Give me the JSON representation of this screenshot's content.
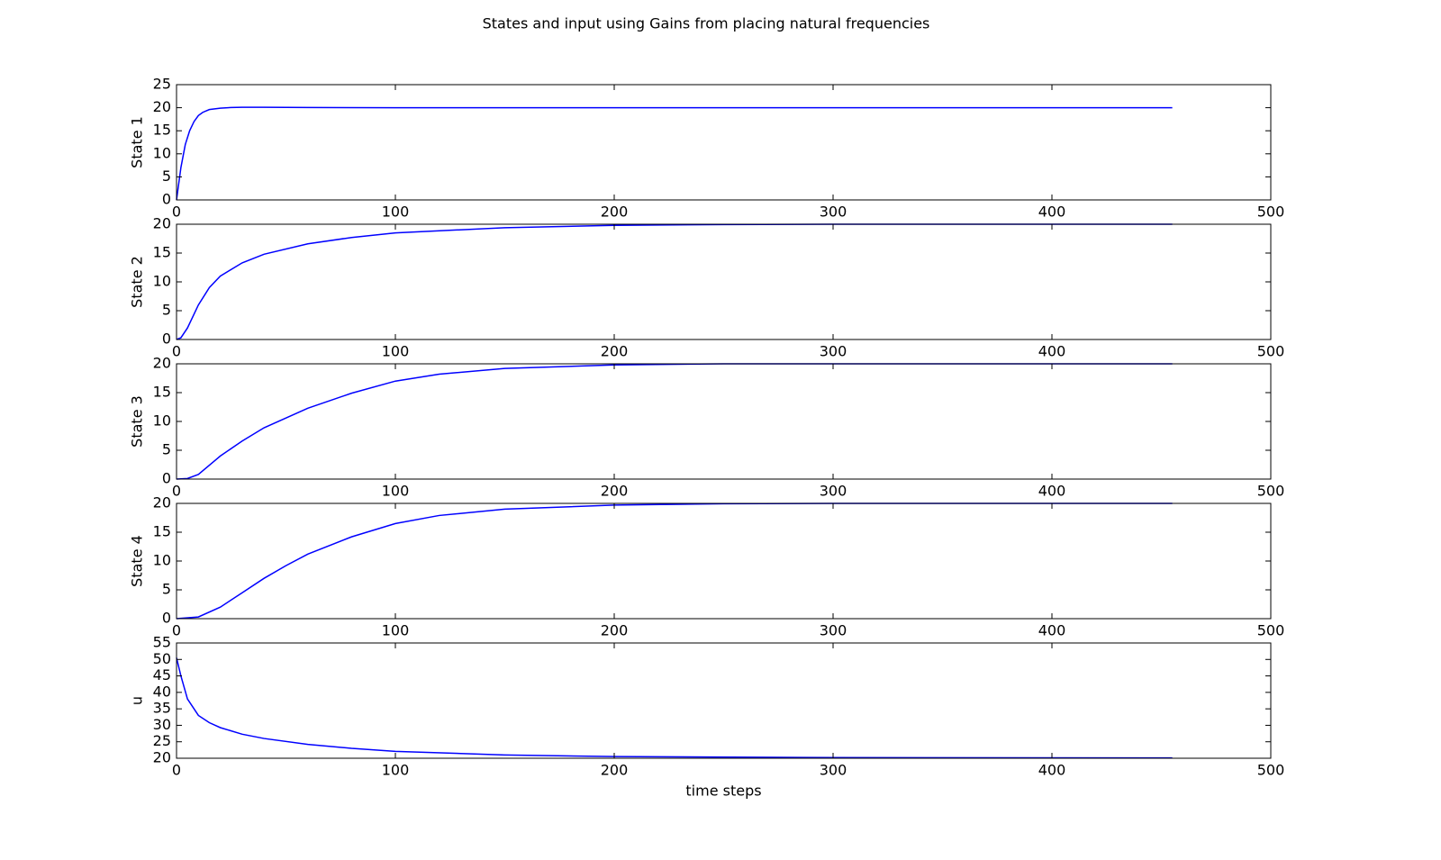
{
  "title": "States and input using Gains from placing natural frequencies",
  "chart_data": [
    {
      "type": "line",
      "y_label": "State 1",
      "xlim": [
        0,
        500
      ],
      "xticks": [
        0,
        100,
        200,
        300,
        400,
        500
      ],
      "ylim": [
        0,
        25
      ],
      "yticks": [
        0,
        5,
        10,
        15,
        20,
        25
      ],
      "series": [
        {
          "color": "#0000ff",
          "x": [
            0,
            2,
            4,
            6,
            8,
            10,
            12,
            15,
            20,
            25,
            30,
            40,
            60,
            100,
            200,
            300,
            455
          ],
          "values": [
            0,
            7,
            12,
            15,
            17,
            18.3,
            19,
            19.6,
            19.9,
            20.05,
            20.1,
            20.1,
            20.05,
            20,
            20,
            20,
            20
          ]
        }
      ]
    },
    {
      "type": "line",
      "y_label": "State 2",
      "xlim": [
        0,
        500
      ],
      "xticks": [
        0,
        100,
        200,
        300,
        400,
        500
      ],
      "ylim": [
        0,
        20
      ],
      "yticks": [
        0,
        5,
        10,
        15,
        20
      ],
      "series": [
        {
          "color": "#0000ff",
          "x": [
            0,
            2,
            5,
            10,
            15,
            20,
            30,
            40,
            60,
            80,
            100,
            150,
            200,
            250,
            300,
            400,
            455
          ],
          "values": [
            0,
            0.3,
            2,
            6,
            9,
            11,
            13.3,
            14.8,
            16.6,
            17.7,
            18.5,
            19.4,
            19.8,
            19.95,
            20,
            20,
            20
          ]
        }
      ]
    },
    {
      "type": "line",
      "y_label": "State 3",
      "xlim": [
        0,
        500
      ],
      "xticks": [
        0,
        100,
        200,
        300,
        400,
        500
      ],
      "ylim": [
        0,
        20
      ],
      "yticks": [
        0,
        5,
        10,
        15,
        20
      ],
      "series": [
        {
          "color": "#0000ff",
          "x": [
            0,
            5,
            10,
            20,
            30,
            40,
            60,
            80,
            100,
            120,
            150,
            200,
            250,
            300,
            455
          ],
          "values": [
            0,
            0.1,
            0.8,
            4,
            6.6,
            8.9,
            12.3,
            14.9,
            17,
            18.2,
            19.2,
            19.8,
            20,
            20,
            20
          ]
        }
      ]
    },
    {
      "type": "line",
      "y_label": "State 4",
      "xlim": [
        0,
        500
      ],
      "xticks": [
        0,
        100,
        200,
        300,
        400,
        500
      ],
      "ylim": [
        0,
        20
      ],
      "yticks": [
        0,
        5,
        10,
        15,
        20
      ],
      "series": [
        {
          "color": "#0000ff",
          "x": [
            0,
            10,
            20,
            30,
            40,
            50,
            60,
            80,
            100,
            120,
            150,
            200,
            250,
            300,
            455
          ],
          "values": [
            0,
            0.3,
            2,
            4.5,
            7,
            9.2,
            11.2,
            14.2,
            16.5,
            17.9,
            19,
            19.7,
            19.95,
            20,
            20
          ]
        }
      ]
    },
    {
      "type": "line",
      "y_label": "u",
      "x_label": "time steps",
      "xlim": [
        0,
        500
      ],
      "xticks": [
        0,
        100,
        200,
        300,
        400,
        500
      ],
      "ylim": [
        20,
        55
      ],
      "yticks": [
        20,
        25,
        30,
        35,
        40,
        45,
        50,
        55
      ],
      "series": [
        {
          "color": "#0000ff",
          "x": [
            0,
            2,
            5,
            10,
            15,
            20,
            30,
            40,
            60,
            80,
            100,
            150,
            200,
            300,
            455
          ],
          "values": [
            50.5,
            45,
            38,
            33,
            30.8,
            29.3,
            27.3,
            26,
            24.2,
            23,
            22.1,
            21,
            20.5,
            20.2,
            20.1
          ]
        }
      ]
    }
  ]
}
